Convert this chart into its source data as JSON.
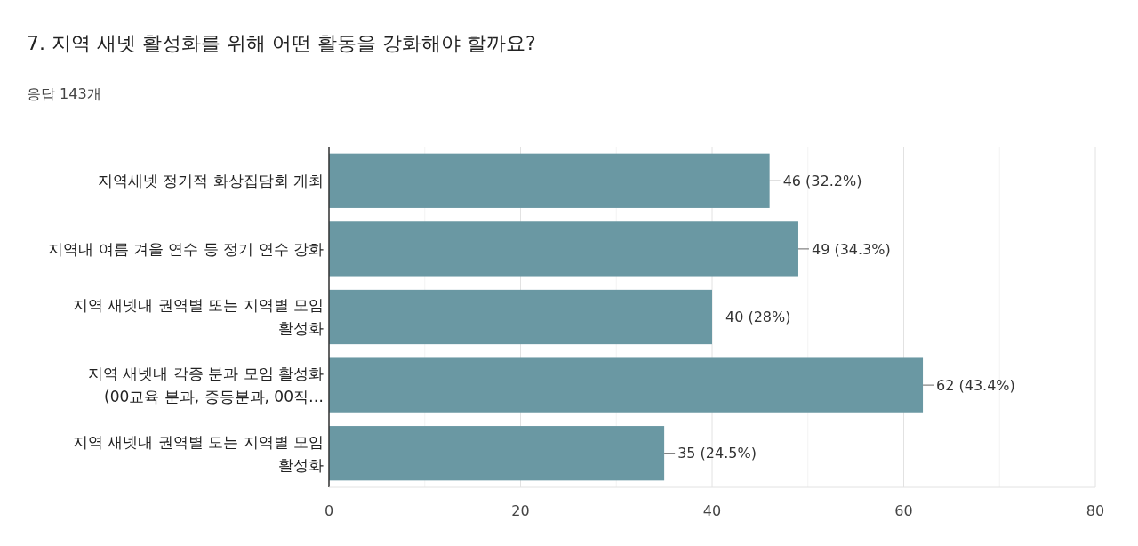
{
  "chart_data": {
    "type": "bar",
    "orientation": "horizontal",
    "title": "7. 지역 새넷 활성화를 위해 어떤 활동을 강화해야 할까요?",
    "subtitle": "응답 143개",
    "categories": [
      "지역새넷 정기적 화상집담회 개최",
      "지역내 여름 겨울 연수 등 정기 연수 강화",
      "지역 새넷내 권역별 또는 지역별 모임 활성화",
      "지역 새넷내 각종 분과 모임 활성화 (00교육 분과, 중등분과, 00직…",
      "지역 새넷내 권역별 도는 지역별 모임 활성화"
    ],
    "values": [
      46,
      49,
      40,
      62,
      35
    ],
    "value_labels": [
      "46 (32.2%)",
      "49 (34.3%)",
      "40 (28%)",
      "62 (43.4%)",
      "35 (24.5%)"
    ],
    "color": "#6a98a3",
    "xlim": [
      0,
      80
    ],
    "xticks": [
      0,
      {
        "value": 10,
        "label": null
      },
      20,
      {
        "value": 30,
        "label": null
      },
      40,
      {
        "value": 50,
        "label": null
      },
      60,
      {
        "value": 70,
        "label": null
      },
      80
    ],
    "grid": "x"
  }
}
